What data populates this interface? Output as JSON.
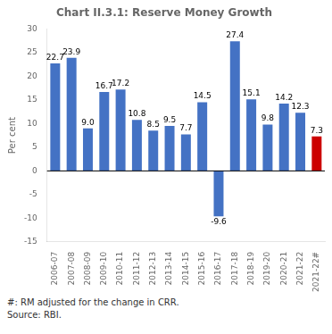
{
  "chart_data": {
    "type": "bar",
    "title": "Chart II.3.1: Reserve Money Growth",
    "ylabel": "Per cent",
    "categories": [
      "2006-07",
      "2007-08",
      "2008-09",
      "2009-10",
      "2010-11",
      "2011-12",
      "2012-13",
      "2013-14",
      "2014-15",
      "2015-16",
      "2016-17",
      "2017-18",
      "2018-19",
      "2019-20",
      "2020-21",
      "2021-22",
      "2021-22#"
    ],
    "values": [
      22.7,
      23.9,
      9.0,
      16.7,
      17.2,
      10.8,
      8.5,
      9.5,
      7.7,
      14.5,
      -9.6,
      27.4,
      15.1,
      9.8,
      14.2,
      12.3,
      7.3
    ],
    "value_labels": [
      "22.7",
      "23.9",
      "9.0",
      "16.7",
      "17.2",
      "10.8",
      "8.5",
      "9.5",
      "7.7",
      "14.5",
      "-9.6",
      "27.4",
      "15.1",
      "9.8",
      "14.2",
      "12.3",
      "7.3"
    ],
    "colors": [
      "#4472C4",
      "#4472C4",
      "#4472C4",
      "#4472C4",
      "#4472C4",
      "#4472C4",
      "#4472C4",
      "#4472C4",
      "#4472C4",
      "#4472C4",
      "#4472C4",
      "#4472C4",
      "#4472C4",
      "#4472C4",
      "#4472C4",
      "#4472C4",
      "#CC0000"
    ],
    "ylim": [
      -15,
      30
    ],
    "yticks": [
      -15,
      -10,
      -5,
      0,
      5,
      10,
      15,
      20,
      25,
      30
    ],
    "grid": false,
    "data_labels": true,
    "annotations": [
      "#: RM adjusted for the change in CRR.",
      "Source: RBI."
    ]
  }
}
